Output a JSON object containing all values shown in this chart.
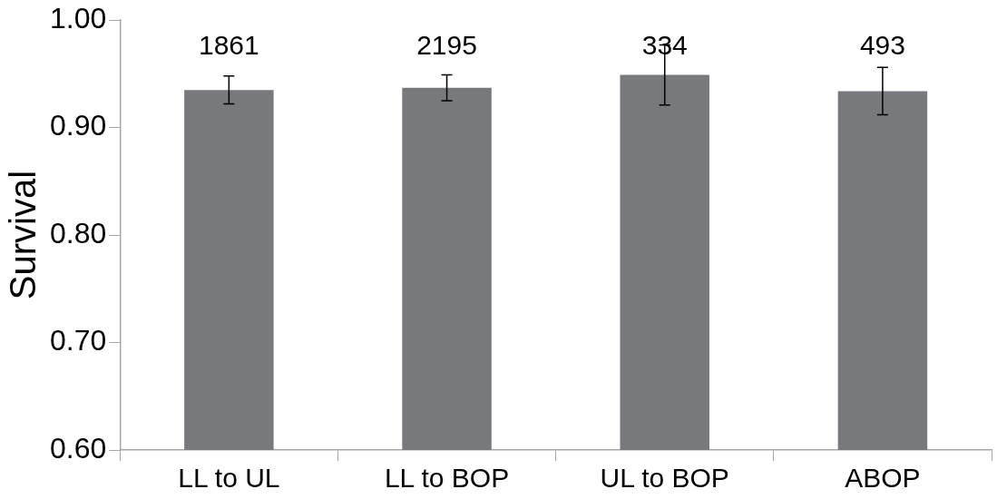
{
  "chart_data": {
    "type": "bar",
    "ylabel": "Survival",
    "categories": [
      "LL to UL",
      "LL to BOP",
      "UL to BOP",
      "ABOP"
    ],
    "values": [
      0.935,
      0.937,
      0.949,
      0.934
    ],
    "errors": [
      0.013,
      0.012,
      0.028,
      0.022
    ],
    "color": "#77797c",
    "ylim": [
      0.6,
      1.0
    ],
    "yticks": [
      {
        "value": 0.6,
        "label": "0.60"
      },
      {
        "value": 0.7,
        "label": "0.70"
      },
      {
        "value": 0.8,
        "label": "0.80"
      },
      {
        "value": 0.9,
        "label": "0.90"
      },
      {
        "value": 1.0,
        "label": "1.00"
      }
    ],
    "grid": false,
    "legend": false,
    "annotations": [
      "1861",
      "2195",
      "334",
      "493"
    ]
  }
}
